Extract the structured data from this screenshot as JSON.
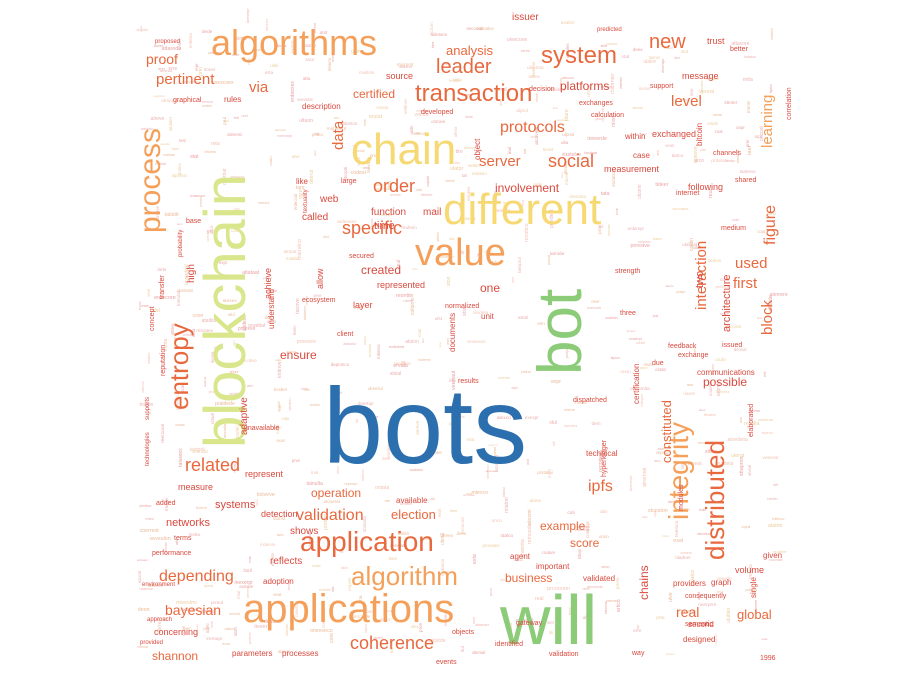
{
  "colors": {
    "dark_blue": "#2C6FAE",
    "green": "#8CCB78",
    "yellow_green": "#D9E68C",
    "yellow": "#F7D974",
    "orange": "#F4A05A",
    "red_orange": "#E8693E",
    "red": "#D94A3E",
    "pink": "#E58A8A"
  },
  "words": [
    {
      "text": "bots",
      "color": "dark_blue"
    },
    {
      "text": "will",
      "color": "green"
    },
    {
      "text": "bot",
      "color": "green"
    },
    {
      "text": "blockchain",
      "color": "yellow_green"
    },
    {
      "text": "different",
      "color": "yellow"
    },
    {
      "text": "chain",
      "color": "yellow"
    },
    {
      "text": "applications",
      "color": "orange"
    },
    {
      "text": "algorithms",
      "color": "orange"
    },
    {
      "text": "value",
      "color": "orange"
    },
    {
      "text": "application",
      "color": "red_orange"
    },
    {
      "text": "algorithm",
      "color": "orange"
    },
    {
      "text": "process",
      "color": "orange"
    },
    {
      "text": "integrity",
      "color": "orange"
    },
    {
      "text": "distributed",
      "color": "red_orange"
    },
    {
      "text": "system",
      "color": "red_orange"
    },
    {
      "text": "transaction",
      "color": "red_orange"
    },
    {
      "text": "entropy",
      "color": "red_orange"
    },
    {
      "text": "new",
      "color": "red_orange"
    },
    {
      "text": "leader",
      "color": "red_orange"
    },
    {
      "text": "social",
      "color": "red_orange"
    },
    {
      "text": "order",
      "color": "red_orange"
    },
    {
      "text": "protocols",
      "color": "red_orange"
    },
    {
      "text": "specific",
      "color": "red_orange"
    },
    {
      "text": "related",
      "color": "red_orange"
    },
    {
      "text": "coherence",
      "color": "red_orange"
    },
    {
      "text": "depending",
      "color": "red_orange"
    },
    {
      "text": "validation",
      "color": "red_orange"
    },
    {
      "text": "ipfs",
      "color": "red_orange"
    },
    {
      "text": "interaction",
      "color": "red_orange"
    },
    {
      "text": "figure",
      "color": "red_orange"
    },
    {
      "text": "learning",
      "color": "orange"
    },
    {
      "text": "used",
      "color": "red_orange"
    },
    {
      "text": "first",
      "color": "red_orange"
    },
    {
      "text": "block",
      "color": "red_orange"
    },
    {
      "text": "level",
      "color": "red_orange"
    },
    {
      "text": "server",
      "color": "red_orange"
    },
    {
      "text": "data",
      "color": "red_orange"
    },
    {
      "text": "pertinent",
      "color": "red_orange"
    },
    {
      "text": "proof",
      "color": "red_orange"
    },
    {
      "text": "via",
      "color": "red_orange"
    },
    {
      "text": "analysis",
      "color": "red_orange"
    },
    {
      "text": "certified",
      "color": "red_orange"
    },
    {
      "text": "platforms",
      "color": "red"
    },
    {
      "text": "constituted",
      "color": "red_orange"
    },
    {
      "text": "bayesian",
      "color": "red_orange"
    },
    {
      "text": "shannon",
      "color": "red_orange"
    },
    {
      "text": "real",
      "color": "red_orange"
    },
    {
      "text": "global",
      "color": "red_orange"
    },
    {
      "text": "chains",
      "color": "red"
    },
    {
      "text": "example",
      "color": "red_orange"
    },
    {
      "text": "score",
      "color": "red_orange"
    },
    {
      "text": "business",
      "color": "red_orange"
    },
    {
      "text": "election",
      "color": "red_orange"
    },
    {
      "text": "operation",
      "color": "red_orange"
    },
    {
      "text": "networks",
      "color": "red"
    },
    {
      "text": "systems",
      "color": "red"
    },
    {
      "text": "created",
      "color": "red"
    },
    {
      "text": "one",
      "color": "red"
    },
    {
      "text": "ensure",
      "color": "red"
    },
    {
      "text": "two",
      "color": "red"
    },
    {
      "text": "architecture",
      "color": "red"
    },
    {
      "text": "possible",
      "color": "red"
    },
    {
      "text": "involvement",
      "color": "red"
    },
    {
      "text": "time",
      "color": "red"
    },
    {
      "text": "function",
      "color": "red"
    },
    {
      "text": "mail",
      "color": "red"
    },
    {
      "text": "called",
      "color": "red"
    },
    {
      "text": "web",
      "color": "red"
    },
    {
      "text": "high",
      "color": "red"
    },
    {
      "text": "adaptive",
      "color": "red"
    },
    {
      "text": "represent",
      "color": "red"
    },
    {
      "text": "reflects",
      "color": "red"
    },
    {
      "text": "shows",
      "color": "red"
    },
    {
      "text": "detection",
      "color": "red"
    },
    {
      "text": "measure",
      "color": "red"
    },
    {
      "text": "concerning",
      "color": "red"
    },
    {
      "text": "issuer",
      "color": "red"
    },
    {
      "text": "source",
      "color": "red"
    },
    {
      "text": "message",
      "color": "red"
    },
    {
      "text": "exchanged",
      "color": "red"
    },
    {
      "text": "measurement",
      "color": "red"
    },
    {
      "text": "following",
      "color": "red"
    },
    {
      "text": "trust",
      "color": "red"
    },
    {
      "text": "within",
      "color": "red"
    },
    {
      "text": "case",
      "color": "red"
    },
    {
      "text": "like",
      "color": "red"
    },
    {
      "text": "allow",
      "color": "red"
    },
    {
      "text": "achieve",
      "color": "red"
    },
    {
      "text": "layer",
      "color": "red"
    },
    {
      "text": "represented",
      "color": "red"
    },
    {
      "text": "unit",
      "color": "red"
    },
    {
      "text": "documents",
      "color": "red"
    },
    {
      "text": "understand",
      "color": "red"
    },
    {
      "text": "description",
      "color": "red"
    },
    {
      "text": "object",
      "color": "red"
    },
    {
      "text": "certification",
      "color": "red"
    },
    {
      "text": "technical",
      "color": "red"
    },
    {
      "text": "communications",
      "color": "red"
    },
    {
      "text": "volume",
      "color": "red"
    },
    {
      "text": "graph",
      "color": "red"
    },
    {
      "text": "providers",
      "color": "red"
    },
    {
      "text": "given",
      "color": "red"
    },
    {
      "text": "single",
      "color": "red"
    },
    {
      "text": "important",
      "color": "red"
    },
    {
      "text": "agent",
      "color": "red"
    },
    {
      "text": "available",
      "color": "red"
    },
    {
      "text": "validated",
      "color": "red"
    },
    {
      "text": "events",
      "color": "red"
    },
    {
      "text": "processes",
      "color": "red"
    },
    {
      "text": "parameters",
      "color": "red"
    },
    {
      "text": "second",
      "color": "red"
    },
    {
      "text": "designed",
      "color": "red"
    },
    {
      "text": "adoption",
      "color": "red"
    },
    {
      "text": "feedback",
      "color": "red"
    },
    {
      "text": "exchange",
      "color": "red"
    },
    {
      "text": "support",
      "color": "red"
    },
    {
      "text": "bitcoin",
      "color": "red"
    },
    {
      "text": "calculation",
      "color": "red"
    },
    {
      "text": "exchanges",
      "color": "red"
    },
    {
      "text": "developed",
      "color": "red"
    },
    {
      "text": "decision",
      "color": "red"
    },
    {
      "text": "rules",
      "color": "red"
    },
    {
      "text": "graphical",
      "color": "red"
    },
    {
      "text": "concept",
      "color": "red"
    },
    {
      "text": "transfer",
      "color": "red"
    },
    {
      "text": "reputation",
      "color": "red"
    },
    {
      "text": "base",
      "color": "red"
    },
    {
      "text": "consequently",
      "color": "red"
    },
    {
      "text": "internet",
      "color": "red"
    },
    {
      "text": "hyperledger",
      "color": "red"
    },
    {
      "text": "semantic",
      "color": "red"
    },
    {
      "text": "validation",
      "color": "red"
    },
    {
      "text": "1996",
      "color": "red"
    },
    {
      "text": "client",
      "color": "red"
    },
    {
      "text": "normalized",
      "color": "red"
    },
    {
      "text": "modules",
      "color": "red"
    },
    {
      "text": "performance",
      "color": "red"
    },
    {
      "text": "terms",
      "color": "red"
    },
    {
      "text": "added",
      "color": "red"
    },
    {
      "text": "unavailable",
      "color": "red"
    },
    {
      "text": "strength",
      "color": "red"
    },
    {
      "text": "three",
      "color": "red"
    },
    {
      "text": "due",
      "color": "red"
    },
    {
      "text": "dispatched",
      "color": "red"
    },
    {
      "text": "results",
      "color": "red"
    },
    {
      "text": "issued",
      "color": "red"
    },
    {
      "text": "correlation",
      "color": "red"
    },
    {
      "text": "better",
      "color": "red"
    },
    {
      "text": "shared",
      "color": "red"
    },
    {
      "text": "channels",
      "color": "red"
    },
    {
      "text": "medium",
      "color": "red"
    },
    {
      "text": "large",
      "color": "red"
    },
    {
      "text": "textuality",
      "color": "red"
    },
    {
      "text": "secured",
      "color": "red"
    },
    {
      "text": "ecosystem",
      "color": "red"
    },
    {
      "text": "way",
      "color": "red"
    },
    {
      "text": "identified",
      "color": "red"
    },
    {
      "text": "objects",
      "color": "red"
    },
    {
      "text": "gateway",
      "color": "red"
    },
    {
      "text": "elaborated",
      "color": "red"
    },
    {
      "text": "proposed",
      "color": "red"
    },
    {
      "text": "technologies",
      "color": "red"
    },
    {
      "text": "supports",
      "color": "red"
    },
    {
      "text": "environment",
      "color": "red"
    },
    {
      "text": "provided",
      "color": "red"
    },
    {
      "text": "approach",
      "color": "red"
    },
    {
      "text": "predicted",
      "color": "red"
    },
    {
      "text": "probability",
      "color": "red"
    }
  ]
}
